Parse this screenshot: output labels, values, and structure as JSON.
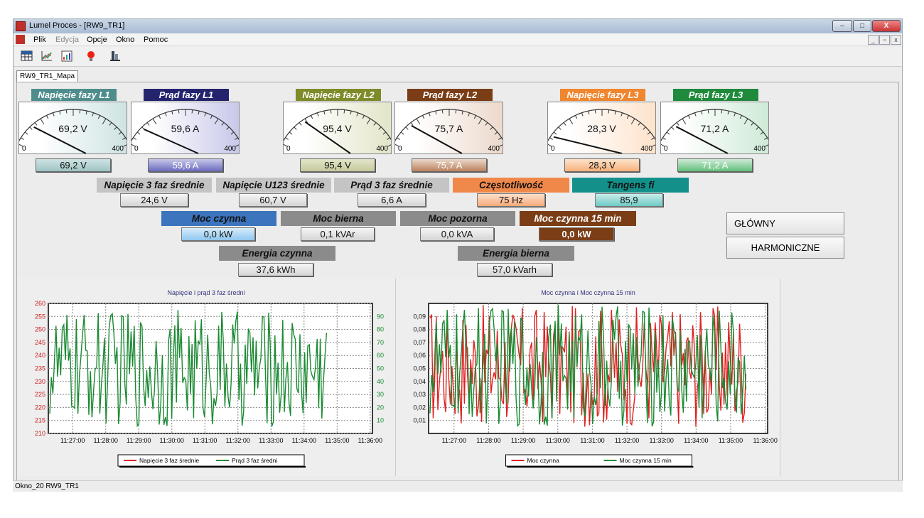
{
  "window": {
    "title": "Lumel Proces - [RW9_TR1]",
    "minimize": "–",
    "maximize": "□",
    "close": "X"
  },
  "menu": {
    "items": [
      "Plik",
      "Edycja",
      "Opcje",
      "Okno",
      "Pomoc"
    ]
  },
  "mdi": {
    "min": "_",
    "restore": "▫",
    "close": "x"
  },
  "toolbar": {
    "icons": [
      "table-icon",
      "chart-icon",
      "report-icon",
      "alarm-icon",
      "device-icon"
    ]
  },
  "tab": {
    "label": "RW9_TR1_Mapa"
  },
  "gauges": [
    {
      "label": "Napięcie fazy L1",
      "value": "69,2 V",
      "display": "69,2 V",
      "min": "0",
      "max": "400",
      "fraction": 0.173,
      "color": "#4f8d8d",
      "light": "#cfe3e3",
      "box": "#9ec4c4"
    },
    {
      "label": "Prąd fazy L1",
      "value": "59,6 A",
      "display": "59,6 A",
      "min": "0",
      "max": "400",
      "fraction": 0.149,
      "color": "#24246e",
      "light": "#c8c8ea",
      "box": "#6a6abf"
    },
    {
      "label": "Napięcie fazy L2",
      "value": "95,4 V",
      "display": "95,4 V",
      "min": "0",
      "max": "400",
      "fraction": 0.2385,
      "color": "#7f8a28",
      "light": "#e3e5c9",
      "box": "#c6c99c"
    },
    {
      "label": "Prąd fazy L2",
      "value": "75,7 A",
      "display": "75,7 A",
      "min": "0",
      "max": "400",
      "fraction": 0.189,
      "color": "#7a3d16",
      "light": "#ecd9cc",
      "box": "#b9805c"
    },
    {
      "label": "Napięcie fazy L3",
      "value": "28,3 V",
      "display": "28,3 V",
      "min": "0",
      "max": "400",
      "fraction": 0.071,
      "color": "#f0862e",
      "light": "#fde3cc",
      "box": "#f7b07a"
    },
    {
      "label": "Prąd fazy L3",
      "value": "71,2 A",
      "display": "71,2 A",
      "min": "0",
      "max": "400",
      "fraction": 0.178,
      "color": "#1f8a3c",
      "light": "#cfead7",
      "box": "#5fbf79"
    }
  ],
  "params_row1": [
    {
      "label": "Napięcie 3 faz średnie",
      "value": "24,6 V",
      "color": "#c4c4c4"
    },
    {
      "label": "Napięcie U123 średnie",
      "value": "60,7 V",
      "color": "#c4c4c4"
    },
    {
      "label": "Prąd 3 faz średnie",
      "value": "6,6 A",
      "color": "#c4c4c4"
    },
    {
      "label": "Częstotliwość",
      "value": "75 Hz",
      "color": "#f0884a"
    },
    {
      "label": "Tangens fi",
      "value": "85,9",
      "color": "#13908a"
    }
  ],
  "params_row2": [
    {
      "label": "Moc czynna",
      "value": "0,0 kW",
      "color": "#3c74bd"
    },
    {
      "label": "Moc bierna",
      "value": "0,1 kVAr",
      "color": "#8b8b8b"
    },
    {
      "label": "Moc pozorna",
      "value": "0,0 kVA",
      "color": "#8b8b8b"
    },
    {
      "label": "Moc czynna 15 min",
      "value": "0,0 kW",
      "color": "#7a3d16"
    }
  ],
  "params_row3": [
    {
      "label": "Energia czynna",
      "value": "37,6 kWh",
      "color": "#8b8b8b"
    },
    {
      "label": "Energia bierna",
      "value": "57,0 kVarh",
      "color": "#8b8b8b"
    }
  ],
  "nav": {
    "glowny": "GŁÓWNY",
    "harmoniczne": "HARMONICZNE"
  },
  "status": {
    "text": "Okno_20 RW9_TR1"
  },
  "chart_data": [
    {
      "type": "line",
      "title": "Napięcie i prąd 3 faz średni",
      "x_ticks": [
        "11:27:00",
        "11:28:00",
        "11:29:00",
        "11:30:00",
        "11:31:00",
        "11:32:00",
        "11:33:00",
        "11:34:00",
        "11:35:00",
        "11:36:00"
      ],
      "y_left_ticks": [
        "260",
        "255",
        "250",
        "245",
        "240",
        "235",
        "230",
        "225",
        "220",
        "215",
        "210"
      ],
      "y_right_ticks": [
        "90",
        "80",
        "70",
        "60",
        "50",
        "40",
        "30",
        "20",
        "10"
      ],
      "ylim_left": [
        210,
        260
      ],
      "ylim_right": [
        0,
        100
      ],
      "series": [
        {
          "name": "Napięcie 3 faz średnie",
          "color": "#e02020",
          "axis": "left"
        },
        {
          "name": "Prąd 3 faz średni",
          "color": "#1a8a32",
          "axis": "right",
          "range": [
            5,
            95
          ]
        }
      ]
    },
    {
      "type": "line",
      "title": "Moc czynna i Moc czynna 15 min",
      "x_ticks": [
        "11:27:00",
        "11:28:00",
        "11:29:00",
        "11:30:00",
        "11:31:00",
        "11:32:00",
        "11:33:00",
        "11:34:00",
        "11:35:00",
        "11:36:00"
      ],
      "y_left_ticks": [
        "0,09",
        "0,08",
        "0,07",
        "0,06",
        "0,05",
        "0,04",
        "0,03",
        "0,02",
        "0,01"
      ],
      "ylim_left": [
        0,
        0.1
      ],
      "series": [
        {
          "name": "Moc czynna",
          "color": "#e02020",
          "axis": "left",
          "range": [
            0.005,
            0.099
          ]
        },
        {
          "name": "Moc czynna 15 min",
          "color": "#1a8a32",
          "axis": "left",
          "range": [
            0.005,
            0.099
          ]
        }
      ]
    }
  ]
}
